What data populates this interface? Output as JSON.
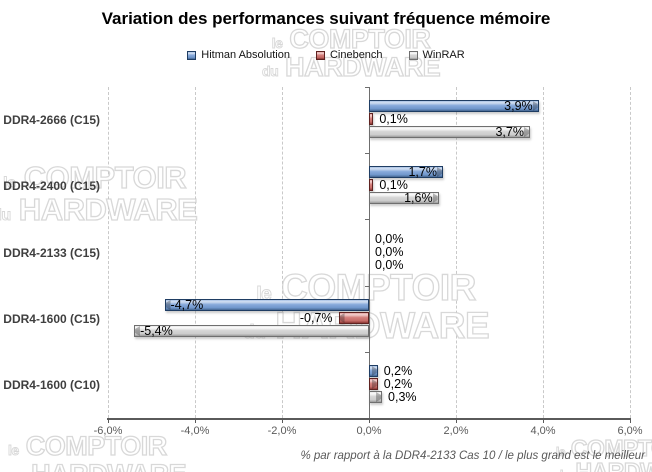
{
  "chart_data": {
    "type": "bar",
    "orientation": "horizontal",
    "title": "Variation des performances suivant fréquence mémoire",
    "footnote": "% par rapport à la DDR4-2133 Cas 10 / le plus grand est le meilleur",
    "categories": [
      "DDR4-2666 (C15)",
      "DDR4-2400 (C15)",
      "DDR4-2133 (C15)",
      "DDR4-1600 (C15)",
      "DDR4-1600 (C10)"
    ],
    "series": [
      {
        "name": "Hitman Absolution",
        "color": "#86a9da",
        "values": [
          3.9,
          1.7,
          0.0,
          -4.7,
          0.2
        ],
        "value_labels": [
          "3,9%",
          "1,7%",
          "0,0%",
          "-4,7%",
          "0,2%"
        ]
      },
      {
        "name": "Cinebench",
        "color": "#d5807d",
        "values": [
          0.1,
          0.1,
          0.0,
          -0.7,
          0.2
        ],
        "value_labels": [
          "0,1%",
          "0,1%",
          "0,0%",
          "-0,7%",
          "0,2%"
        ]
      },
      {
        "name": "WinRAR",
        "color": "#d6d6d6",
        "values": [
          3.7,
          1.6,
          0.0,
          -5.4,
          0.3
        ],
        "value_labels": [
          "3,7%",
          "1,6%",
          "0,0%",
          "-5,4%",
          "0,3%"
        ]
      }
    ],
    "x_axis": {
      "min": -6,
      "max": 6,
      "step": 2,
      "tick_labels": [
        "-6,0%",
        "-4,0%",
        "-2,0%",
        "0,0%",
        "2,0%",
        "4,0%",
        "6,0%"
      ]
    },
    "legend_position": "top",
    "grid": "vertical-dashed",
    "colors": {
      "axis": "#5a5a5a",
      "grid": "#c9c9c9",
      "category_text": "#3f3f3f",
      "tick_text": "#5a5a5a"
    }
  },
  "watermark": {
    "small_word_1": "le",
    "big_word_1": "COMPTOIR",
    "small_word_2": "du",
    "big_word_2": "HARDWARE"
  }
}
